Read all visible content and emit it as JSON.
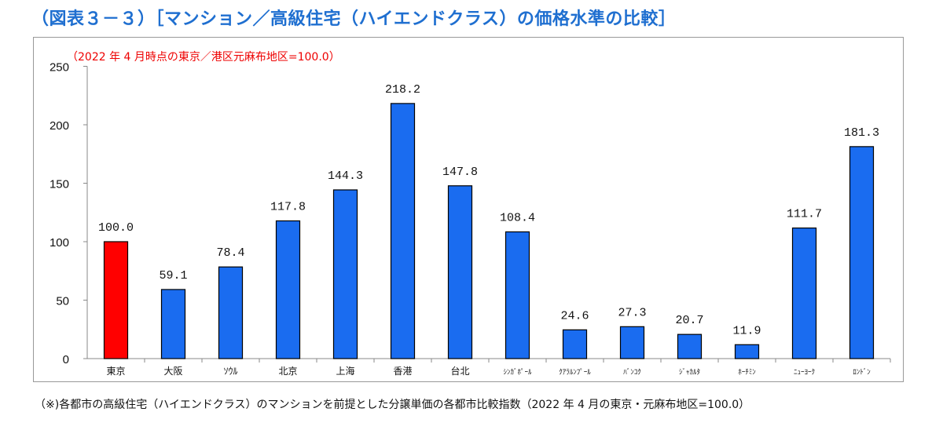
{
  "title": "（図表３－３）［マンション／高級住宅（ハイエンドクラス）の価格水準の比較］",
  "note": "（2022 年 4 月時点の東京／港区元麻布地区=100.0）",
  "footnote": "（※)各都市の高級住宅（ハイエンドクラス）のマンションを前提とした分譲単価の各都市比較指数（2022 年 4 月の東京・元麻布地区=100.0）",
  "chart_data": {
    "type": "bar",
    "title": "（図表３－３）［マンション／高級住宅（ハイエンドクラス）の価格水準の比較］",
    "categories": [
      "東京",
      "大阪",
      "ｿｳﾙ",
      "北京",
      "上海",
      "香港",
      "台北",
      "ｼﾝｶﾞﾎﾟｰﾙ",
      "ｸｱﾗﾙﾝﾌﾟｰﾙ",
      "ﾊﾞﾝｺｸ",
      "ｼﾞｬｶﾙﾀ",
      "ﾎｰﾁﾐﾝ",
      "ﾆｭｰﾖｰｸ",
      "ﾛﾝﾄﾞﾝ"
    ],
    "values": [
      100.0,
      59.1,
      78.4,
      117.8,
      144.3,
      218.2,
      147.8,
      108.4,
      24.6,
      27.3,
      20.7,
      11.9,
      111.7,
      181.3
    ],
    "labels": [
      "100.0",
      "59.1",
      "78.4",
      "117.8",
      "144.3",
      "218.2",
      "147.8",
      "108.4",
      "24.6",
      "27.3",
      "20.7",
      "11.9",
      "111.7",
      "181.3"
    ],
    "colors": [
      "#ff0000",
      "#1a6cf0",
      "#1a6cf0",
      "#1a6cf0",
      "#1a6cf0",
      "#1a6cf0",
      "#1a6cf0",
      "#1a6cf0",
      "#1a6cf0",
      "#1a6cf0",
      "#1a6cf0",
      "#1a6cf0",
      "#1a6cf0",
      "#1a6cf0"
    ],
    "yticks": [
      "0",
      "50",
      "100",
      "150",
      "200",
      "250"
    ],
    "ylim": [
      0,
      250
    ],
    "xlabel": "",
    "ylabel": "",
    "grid": false
  }
}
